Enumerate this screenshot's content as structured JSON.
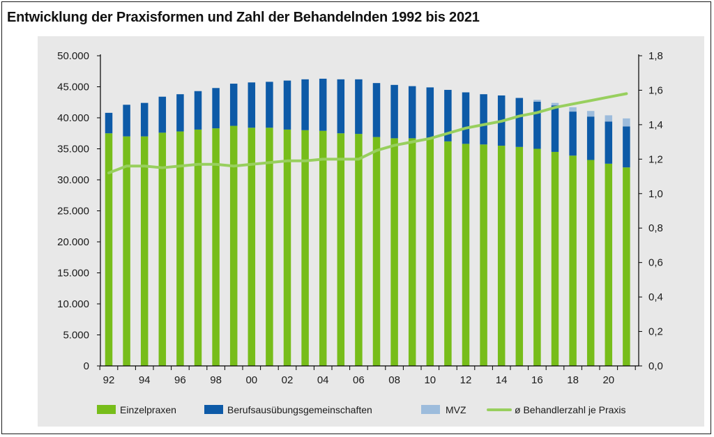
{
  "title": "Entwicklung der Praxisformen und Zahl der Behandelnden 1992 bis 2021",
  "colors": {
    "einzel": "#77bd1a",
    "bag": "#0d5aa7",
    "mvz": "#9dbcdc",
    "line": "#98cf5e",
    "panel": "#e8e8e8"
  },
  "chart_data": {
    "type": "bar",
    "stacked": true,
    "x": [
      1992,
      1993,
      1994,
      1995,
      1996,
      1997,
      1998,
      1999,
      2000,
      2001,
      2002,
      2003,
      2004,
      2005,
      2006,
      2007,
      2008,
      2009,
      2010,
      2011,
      2012,
      2013,
      2014,
      2015,
      2016,
      2017,
      2018,
      2019,
      2020,
      2021
    ],
    "x_tick_labels": [
      "92",
      "94",
      "96",
      "98",
      "00",
      "02",
      "04",
      "06",
      "08",
      "10",
      "12",
      "14",
      "16",
      "18",
      "20"
    ],
    "series": [
      {
        "name": "Einzelpraxen",
        "color": "#77bd1a",
        "values": [
          37500,
          37000,
          37000,
          37600,
          37800,
          38100,
          38300,
          38700,
          38400,
          38400,
          38100,
          38000,
          37900,
          37500,
          37400,
          36900,
          36700,
          36700,
          36600,
          36200,
          35800,
          35700,
          35500,
          35300,
          35000,
          34500,
          33900,
          33200,
          32600,
          32000
        ]
      },
      {
        "name": "Berufsausübungsgemeinschaften",
        "color": "#0d5aa7",
        "values": [
          3300,
          5100,
          5400,
          5800,
          6000,
          6200,
          6500,
          6800,
          7300,
          7400,
          7900,
          8200,
          8400,
          8700,
          8800,
          8700,
          8600,
          8400,
          8300,
          8300,
          8300,
          8100,
          8100,
          7900,
          7600,
          7500,
          7100,
          7000,
          6800,
          6600
        ]
      },
      {
        "name": "MVZ",
        "color": "#9dbcdc",
        "values": [
          0,
          0,
          0,
          0,
          0,
          0,
          0,
          0,
          0,
          0,
          0,
          0,
          0,
          0,
          0,
          0,
          0,
          0,
          0,
          0,
          0,
          0,
          0,
          0,
          300,
          400,
          700,
          900,
          1000,
          1300
        ]
      },
      {
        "name": "ø Behandlerzahl je Praxis",
        "type": "line",
        "axis": "right",
        "color": "#98cf5e",
        "values": [
          1.12,
          1.16,
          1.16,
          1.15,
          1.16,
          1.17,
          1.17,
          1.16,
          1.17,
          1.18,
          1.19,
          1.19,
          1.2,
          1.2,
          1.2,
          1.25,
          1.28,
          1.3,
          1.32,
          1.35,
          1.38,
          1.4,
          1.42,
          1.45,
          1.47,
          1.5,
          1.52,
          1.54,
          1.56,
          1.58
        ]
      }
    ],
    "y_left": {
      "lim": [
        0,
        50000
      ],
      "ticks": [
        0,
        5000,
        10000,
        15000,
        20000,
        25000,
        30000,
        35000,
        40000,
        45000,
        50000
      ],
      "tick_labels": [
        "0",
        "5.000",
        "10.000",
        "15.000",
        "20.000",
        "25.000",
        "30.000",
        "35.000",
        "40.000",
        "45.000",
        "50.000"
      ]
    },
    "y_right": {
      "lim": [
        0,
        1.8
      ],
      "ticks": [
        0,
        0.2,
        0.4,
        0.6,
        0.8,
        1.0,
        1.2,
        1.4,
        1.6,
        1.8
      ],
      "tick_labels": [
        "0,0",
        "0,2",
        "0,4",
        "0,6",
        "0,8",
        "1,0",
        "1,2",
        "1,4",
        "1,6",
        "1,8"
      ]
    },
    "legend": {
      "position": "bottom",
      "items": [
        "Einzelpraxen",
        "Berufsausübungsgemeinschaften",
        "MVZ",
        "ø Behandlerzahl je Praxis"
      ]
    },
    "grid": false
  }
}
